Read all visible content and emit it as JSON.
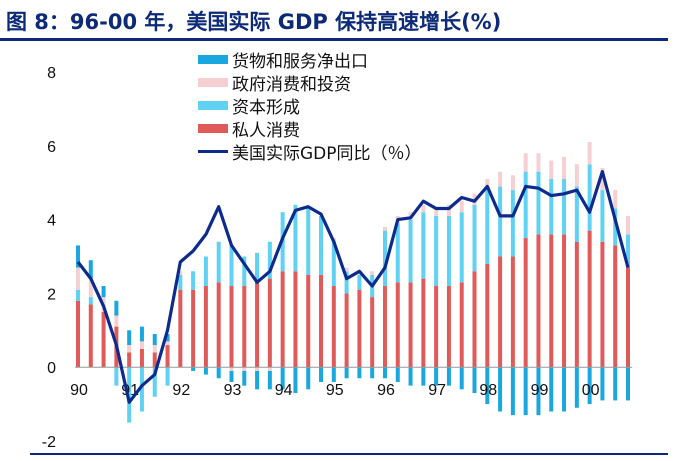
{
  "title": "图 8：96-00 年，美国实际 GDP 保持高速增长(%)",
  "colors": {
    "title": "#0c2a78",
    "net_exports": "#1aa7e0",
    "government": "#f6cfd2",
    "investment": "#5fd1f3",
    "consumption": "#e15a5a",
    "gdp_line": "#0d2b8c"
  },
  "chart_data": {
    "type": "bar",
    "stacked": true,
    "title": "图 8：96-00 年，美国实际 GDP 保持高速增长(%)",
    "xlabel": "",
    "ylabel": "",
    "ylim": [
      -2,
      8
    ],
    "yticks": [
      -2,
      0,
      2,
      4,
      6,
      8
    ],
    "grid": false,
    "legend_position": "top-center",
    "tick_labels": [
      "90",
      "91",
      "92",
      "93",
      "94",
      "95",
      "96",
      "97",
      "98",
      "99",
      "00"
    ],
    "x": [
      "1990Q1",
      "1990Q2",
      "1990Q3",
      "1990Q4",
      "1991Q1",
      "1991Q2",
      "1991Q3",
      "1991Q4",
      "1992Q1",
      "1992Q2",
      "1992Q3",
      "1992Q4",
      "1993Q1",
      "1993Q2",
      "1993Q3",
      "1993Q4",
      "1994Q1",
      "1994Q2",
      "1994Q3",
      "1994Q4",
      "1995Q1",
      "1995Q2",
      "1995Q3",
      "1995Q4",
      "1996Q1",
      "1996Q2",
      "1996Q3",
      "1996Q4",
      "1997Q1",
      "1997Q2",
      "1997Q3",
      "1997Q4",
      "1998Q1",
      "1998Q2",
      "1998Q3",
      "1998Q4",
      "1999Q1",
      "1999Q2",
      "1999Q3",
      "1999Q4",
      "2000Q1",
      "2000Q2",
      "2000Q3",
      "2000Q4"
    ],
    "series": [
      {
        "name": "货物和服务净出口",
        "key": "net_exports",
        "values": [
          0.6,
          0.5,
          0.3,
          0.4,
          0.4,
          0.4,
          0.3,
          0.2,
          0.0,
          -0.1,
          -0.2,
          -0.3,
          -0.3,
          -0.4,
          -0.5,
          -0.5,
          -0.6,
          -0.7,
          -0.6,
          -0.4,
          -0.4,
          -0.3,
          -0.3,
          -0.3,
          -0.3,
          -0.4,
          -0.5,
          -0.5,
          -0.5,
          -0.5,
          -0.6,
          -0.7,
          -1.0,
          -1.2,
          -1.3,
          -1.3,
          -1.3,
          -1.2,
          -1.2,
          -1.1,
          -1.0,
          -0.9,
          -0.9,
          -0.9
        ]
      },
      {
        "name": "政府消费和投资",
        "key": "government",
        "values": [
          0.6,
          0.5,
          0.4,
          0.3,
          0.2,
          0.2,
          0.2,
          0.1,
          0.1,
          0.0,
          0.0,
          0.0,
          -0.1,
          -0.1,
          -0.1,
          -0.1,
          0.0,
          0.0,
          0.0,
          0.0,
          0.1,
          0.1,
          0.1,
          0.1,
          0.1,
          0.2,
          0.2,
          0.2,
          0.2,
          0.3,
          0.3,
          0.3,
          0.3,
          0.4,
          0.4,
          0.5,
          0.5,
          0.5,
          0.6,
          0.6,
          0.6,
          0.6,
          0.5,
          0.5
        ]
      },
      {
        "name": "资本形成",
        "key": "investment",
        "values": [
          0.3,
          0.2,
          0.0,
          -0.5,
          -1.5,
          -1.2,
          -0.8,
          -0.5,
          0.4,
          0.5,
          0.8,
          1.1,
          1.1,
          0.8,
          0.8,
          1.0,
          1.6,
          1.8,
          1.8,
          1.6,
          1.2,
          0.6,
          0.4,
          0.6,
          1.5,
          1.6,
          1.7,
          1.8,
          1.9,
          1.9,
          1.9,
          1.8,
          2.0,
          1.9,
          1.8,
          1.8,
          1.7,
          1.5,
          1.5,
          1.5,
          1.8,
          1.4,
          1.0,
          0.9
        ]
      },
      {
        "name": "私人消费",
        "key": "consumption",
        "values": [
          1.8,
          1.7,
          1.5,
          1.1,
          0.4,
          0.5,
          0.4,
          0.6,
          2.1,
          2.1,
          2.2,
          2.3,
          2.2,
          2.2,
          2.3,
          2.4,
          2.6,
          2.6,
          2.5,
          2.5,
          2.2,
          2.0,
          2.1,
          1.9,
          2.2,
          2.3,
          2.3,
          2.4,
          2.2,
          2.2,
          2.3,
          2.6,
          2.8,
          3.0,
          3.0,
          3.5,
          3.6,
          3.6,
          3.6,
          3.4,
          3.7,
          3.4,
          3.3,
          2.7
        ]
      },
      {
        "name": "美国实际GDP同比（％）",
        "key": "gdp_line",
        "type": "line",
        "values": [
          2.85,
          2.4,
          1.65,
          0.6,
          -0.95,
          -0.5,
          -0.2,
          1.0,
          2.85,
          3.15,
          3.6,
          4.35,
          3.3,
          2.8,
          2.3,
          2.6,
          3.5,
          4.25,
          4.35,
          4.15,
          3.4,
          2.4,
          2.6,
          2.2,
          2.7,
          4.0,
          4.05,
          4.5,
          4.3,
          4.3,
          4.6,
          4.5,
          4.9,
          4.1,
          4.1,
          4.9,
          4.85,
          4.65,
          4.7,
          4.8,
          4.2,
          5.3,
          4.0,
          2.7
        ]
      }
    ]
  }
}
